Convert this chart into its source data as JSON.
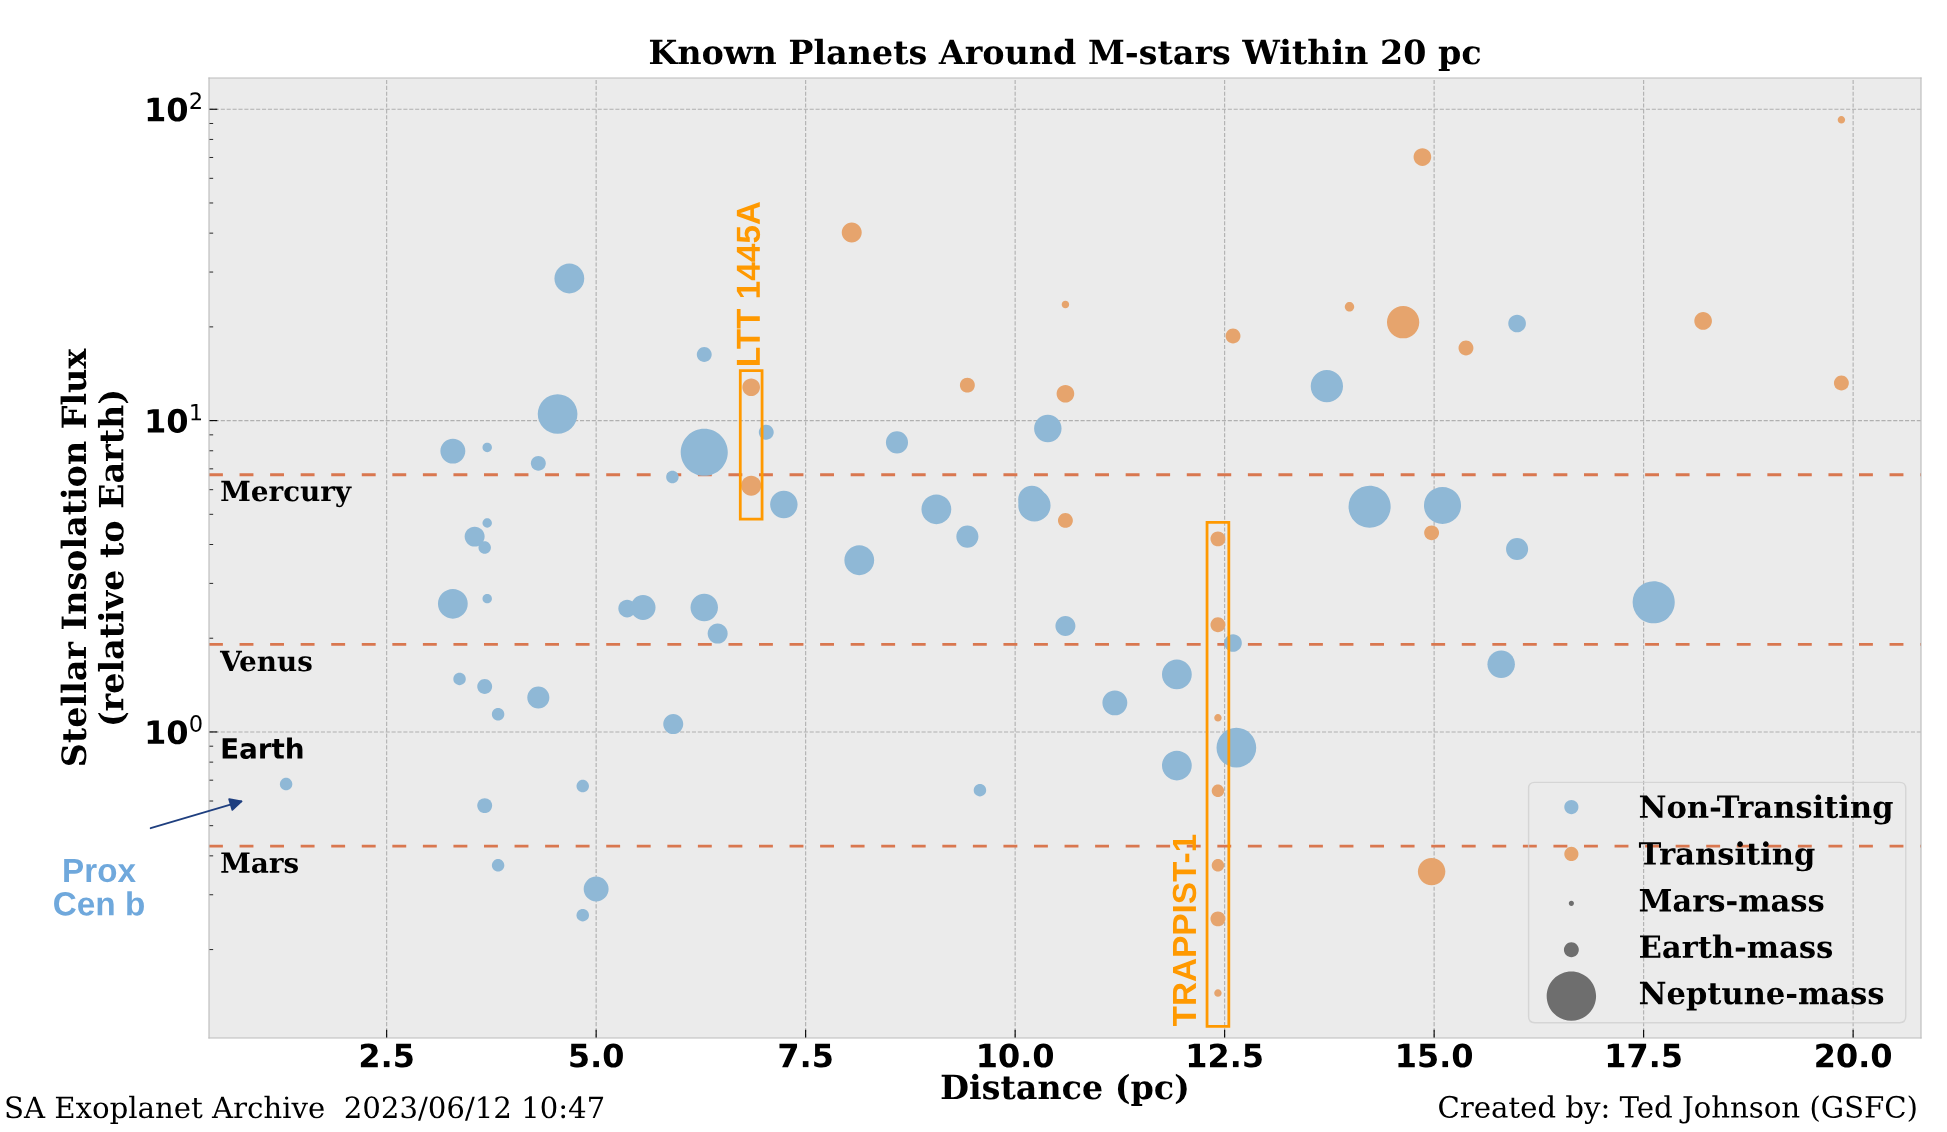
{
  "chart_data": {
    "type": "bubble",
    "title": "Known Planets Around M-stars Within 20 pc",
    "xlabel": "Distance (pc)",
    "ylabel": "Stellar Insolation Flux\n(relative to Earth)",
    "series": [
      {
        "name": "Non-Transiting",
        "color": "#8fb8d6",
        "x": [
          1.3,
          3.29,
          3.7,
          4.31,
          4.54,
          4.68,
          6.29,
          6.29,
          7.03,
          5.91,
          7.24,
          8.59,
          8.14,
          9.06,
          9.43,
          10.39,
          10.2,
          10.23,
          10.6,
          13.72,
          14.23,
          15.1,
          15.99,
          15.99,
          15.8,
          17.62,
          3.29,
          3.7,
          3.55,
          3.7,
          3.67,
          5.37,
          5.56,
          6.29,
          6.45,
          3.37,
          3.67,
          3.83,
          4.31,
          5.92,
          3.67,
          4.84,
          3.83,
          5.0,
          4.84,
          9.58,
          11.19,
          11.93,
          11.93,
          12.64,
          12.6
        ],
        "values": [
          0.68,
          7.98,
          8.2,
          7.29,
          10.5,
          28.6,
          16.3,
          7.91,
          9.17,
          6.59,
          5.38,
          8.51,
          3.56,
          5.19,
          4.24,
          9.43,
          5.58,
          5.34,
          2.19,
          12.9,
          5.29,
          5.34,
          20.5,
          3.87,
          1.65,
          2.61,
          2.58,
          2.68,
          4.24,
          4.69,
          3.91,
          2.49,
          2.51,
          2.51,
          2.07,
          1.48,
          1.4,
          1.14,
          1.29,
          1.06,
          0.58,
          0.67,
          0.373,
          0.313,
          0.258,
          0.65,
          1.24,
          1.53,
          0.78,
          0.89,
          1.93
        ],
        "sizes": [
          0.07,
          0.28,
          0.04,
          0.1,
          0.71,
          0.4,
          0.1,
          1,
          0.1,
          0.07,
          0.34,
          0.22,
          0.4,
          0.4,
          0.22,
          0.34,
          0.34,
          0.47,
          0.18,
          0.47,
          0.8,
          0.62,
          0.14,
          0.22,
          0.34,
          0.8,
          0.4,
          0.04,
          0.18,
          0.04,
          0.07,
          0.14,
          0.28,
          0.34,
          0.18,
          0.07,
          0.1,
          0.07,
          0.22,
          0.18,
          0.1,
          0.07,
          0.07,
          0.28,
          0.07,
          0.07,
          0.28,
          0.4,
          0.4,
          0.71,
          0.14
        ]
      },
      {
        "name": "Transiting",
        "color": "#e6a46d",
        "x": [
          8.05,
          6.85,
          6.85,
          9.43,
          10.6,
          10.6,
          10.6,
          12.6,
          13.99,
          14.63,
          14.86,
          15.38,
          14.97,
          18.21,
          19.86,
          19.86,
          14.97,
          12.42,
          12.42,
          12.42,
          12.42,
          12.42,
          12.42,
          12.42
        ],
        "values": [
          40.2,
          12.8,
          6.18,
          13.0,
          23.6,
          12.2,
          4.78,
          18.7,
          23.2,
          20.7,
          70.2,
          17.1,
          4.36,
          20.9,
          13.2,
          92.5,
          0.356,
          4.17,
          2.21,
          1.11,
          0.647,
          0.373,
          0.251,
          0.145
        ],
        "sizes": [
          0.18,
          0.14,
          0.18,
          0.1,
          0.025,
          0.14,
          0.1,
          0.1,
          0.04,
          0.47,
          0.14,
          0.1,
          0.1,
          0.14,
          0.1,
          0.025,
          0.34,
          0.1,
          0.1,
          0.025,
          0.07,
          0.07,
          0.1,
          0.025
        ]
      }
    ],
    "size_legend": [
      {
        "value": 0.012,
        "label": "Mars-mass"
      },
      {
        "value": 0.1,
        "label": "Earth-mass"
      },
      {
        "value": 1.1,
        "label": "Neptune-mass"
      }
    ],
    "xlim": [
      0.38,
      20.81
    ],
    "xticks": [
      2.5,
      {
        "value": 5,
        "label": "5.0"
      },
      7.5,
      {
        "value": 10,
        "label": "10.0"
      },
      12.5,
      {
        "value": 15,
        "label": "15.0"
      },
      17.5,
      {
        "value": 20,
        "label": "20.0"
      }
    ],
    "log": true,
    "ylim": [
      0.104,
      126
    ],
    "yticks": [
      {
        "value": 1,
        "label": "10$^{0}$"
      },
      {
        "value": 10,
        "label": "10$^{1}$"
      },
      {
        "value": 100,
        "label": "10$^{2}$"
      }
    ],
    "ref_lines": [
      {
        "axis": "y",
        "value": 6.7,
        "label": "Mercury",
        "color": "#d9774f",
        "line_style": "dashed"
      },
      {
        "axis": "y",
        "value": 1.91,
        "label": "Venus",
        "color": "#d9774f",
        "line_style": "dashed"
      },
      {
        "axis": "y",
        "value": 1,
        "label": "Earth"
      },
      {
        "axis": "y",
        "value": 0.43,
        "label": "Mars",
        "color": "#d9774f",
        "line_style": "dashed"
      }
    ],
    "annotations": [
      {
        "text": "LTT 1445A",
        "x": 6.85,
        "y": 12.8
      },
      {
        "text": "TRAPPIST-1",
        "x": 12.42,
        "y": 0.145
      },
      "Prox\nCen b",
      "SA Exoplanet Archive  2023/06/12 10:47",
      "Created by: Ted Johnson (GSFC)"
    ],
    "grid": true,
    "legend": "bottom right"
  }
}
